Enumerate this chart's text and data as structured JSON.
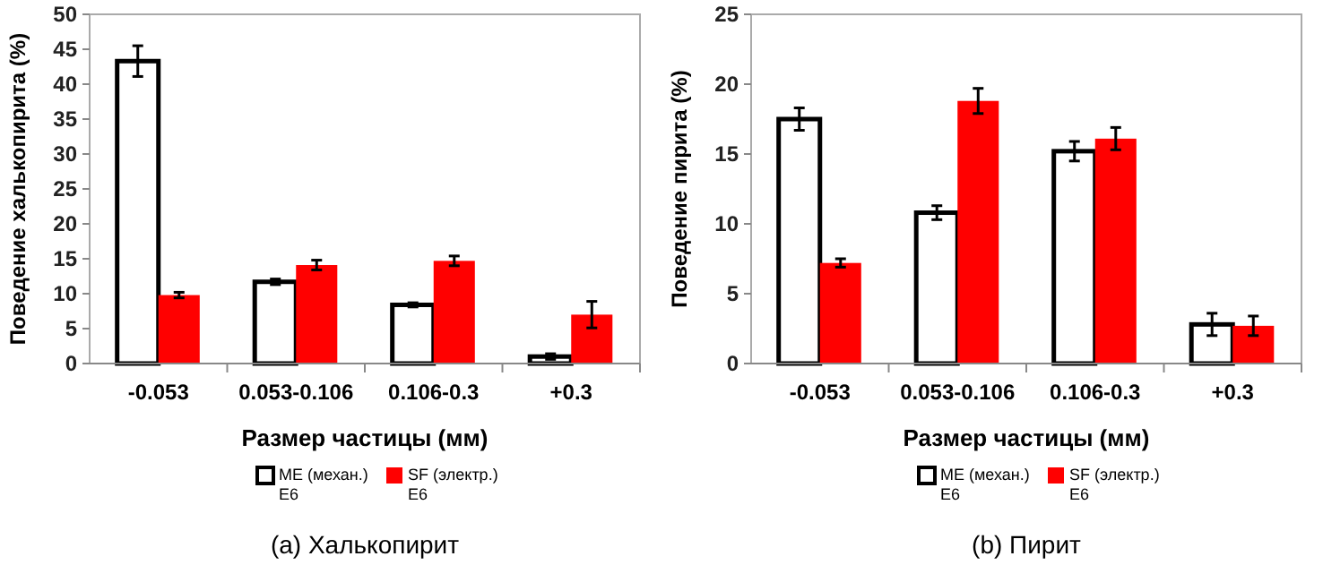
{
  "chart_data": [
    {
      "type": "bar",
      "title": "(a) Халькопирит",
      "xlabel": "Размер частицы (мм)",
      "ylabel": "Поведение халькопирита (%)",
      "categories": [
        "-0.053",
        "0.053-0.106",
        "0.106-0.3",
        "+0.3"
      ],
      "ylim": [
        0,
        50
      ],
      "yticks": [
        0,
        5,
        10,
        15,
        20,
        25,
        30,
        35,
        40,
        45,
        50
      ],
      "legend": "bottom",
      "grid": false,
      "series": [
        {
          "name": "ME (механ.) E6",
          "color": "#ffffff",
          "values": [
            43.3,
            11.7,
            8.4,
            1.0
          ],
          "errors": [
            2.2,
            0.4,
            0.3,
            0.4
          ]
        },
        {
          "name": "SF (электр.) E6",
          "color": "#ff0000",
          "values": [
            9.8,
            14.1,
            14.7,
            7.0
          ],
          "errors": [
            0.4,
            0.7,
            0.7,
            1.9
          ]
        }
      ]
    },
    {
      "type": "bar",
      "title": "(b) Пирит",
      "xlabel": "Размер частицы (мм)",
      "ylabel": "Поведение пирита (%)",
      "categories": [
        "-0.053",
        "0.053-0.106",
        "0.106-0.3",
        "+0.3"
      ],
      "ylim": [
        0,
        25
      ],
      "yticks": [
        0,
        5,
        10,
        15,
        20,
        25
      ],
      "legend": "bottom",
      "grid": false,
      "series": [
        {
          "name": "ME (механ.) E6",
          "color": "#ffffff",
          "values": [
            17.5,
            10.8,
            15.2,
            2.8
          ],
          "errors": [
            0.8,
            0.5,
            0.7,
            0.8
          ]
        },
        {
          "name": "SF (электр.) E6",
          "color": "#ff0000",
          "values": [
            7.2,
            18.8,
            16.1,
            2.7
          ],
          "errors": [
            0.3,
            0.9,
            0.8,
            0.7
          ]
        }
      ]
    }
  ]
}
